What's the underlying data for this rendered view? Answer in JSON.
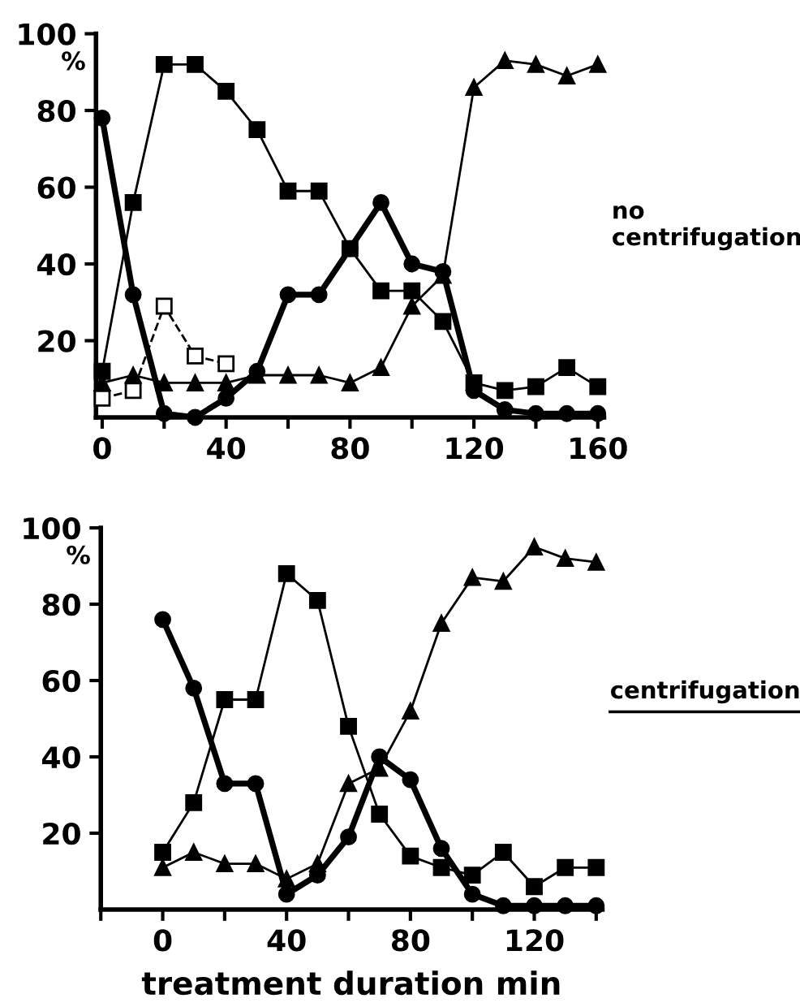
{
  "chart_data": [
    {
      "type": "line",
      "ylabel": "%",
      "annotations": [
        "no\ncentrifugation"
      ],
      "x": [
        0,
        10,
        20,
        30,
        40,
        50,
        60,
        70,
        80,
        90,
        100,
        110,
        120,
        130,
        140,
        150,
        160
      ],
      "xlim": [
        -2,
        162
      ],
      "xticks": [
        0,
        {
          "value": 20,
          "label": null
        },
        40,
        {
          "value": 60,
          "label": null
        },
        80,
        {
          "value": 100,
          "label": null
        },
        120,
        {
          "value": 140,
          "label": null
        },
        160
      ],
      "ylim": [
        0,
        100
      ],
      "yticks": [
        20,
        40,
        60,
        80,
        100
      ],
      "grid": false,
      "series": [
        {
          "color": "#000000",
          "marker": "square",
          "line_style": "solid",
          "values": [
            12,
            56,
            92,
            92,
            85,
            75,
            59,
            59,
            44,
            33,
            33,
            25,
            9,
            7,
            8,
            13,
            8
          ]
        },
        {
          "color": "#000000",
          "marker": "circle",
          "line_style": "solid",
          "values": [
            78,
            32,
            1,
            0,
            5,
            12,
            32,
            32,
            44,
            56,
            40,
            38,
            7,
            2,
            1,
            1,
            1
          ]
        },
        {
          "color": "#000000",
          "marker": "triangle",
          "line_style": "solid",
          "values": [
            9,
            11,
            9,
            9,
            9,
            11,
            11,
            11,
            9,
            13,
            29,
            37,
            86,
            93,
            92,
            89,
            92
          ]
        },
        {
          "color": "#000000",
          "marker": "square",
          "line_style": "dashed",
          "x": [
            0,
            10,
            20,
            30,
            40
          ],
          "values": [
            5,
            7,
            29,
            16,
            14
          ]
        }
      ]
    },
    {
      "type": "line",
      "ylabel": "%",
      "xlabel": "treatment duration min",
      "annotations": [
        "centrifugation"
      ],
      "x": [
        0,
        10,
        20,
        30,
        40,
        50,
        60,
        70,
        80,
        90,
        100,
        110,
        120,
        130,
        140
      ],
      "xlim": [
        -20,
        142
      ],
      "xticks": [
        {
          "value": -20,
          "label": null
        },
        0,
        {
          "value": 20,
          "label": null
        },
        40,
        {
          "value": 60,
          "label": null
        },
        80,
        {
          "value": 100,
          "label": null
        },
        120,
        {
          "value": 140,
          "label": null
        }
      ],
      "ylim": [
        0,
        100
      ],
      "yticks": [
        20,
        40,
        60,
        80,
        100
      ],
      "grid": false,
      "series": [
        {
          "color": "#000000",
          "marker": "square",
          "line_style": "solid",
          "values": [
            15,
            28,
            55,
            55,
            88,
            81,
            48,
            25,
            14,
            11,
            9,
            15,
            6,
            11,
            11
          ]
        },
        {
          "color": "#000000",
          "marker": "circle",
          "line_style": "solid",
          "values": [
            76,
            58,
            33,
            33,
            4,
            9,
            19,
            40,
            34,
            16,
            4,
            1,
            1,
            1,
            1
          ]
        },
        {
          "color": "#000000",
          "marker": "triangle",
          "line_style": "solid",
          "values": [
            11,
            15,
            12,
            12,
            8,
            12,
            33,
            37,
            52,
            75,
            87,
            86,
            95,
            92,
            91
          ]
        }
      ]
    }
  ]
}
